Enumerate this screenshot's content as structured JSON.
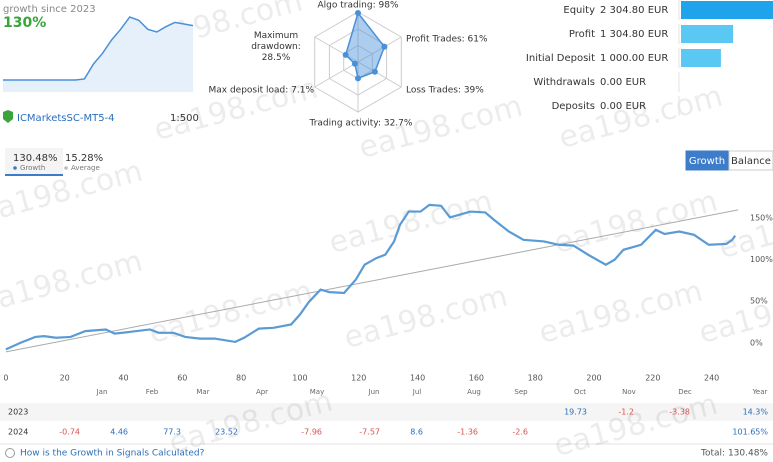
{
  "header": {
    "caption": "growth since 2023",
    "growth": "130%"
  },
  "sparkline": {
    "type": "area",
    "color": "#4a90d9",
    "values": [
      0,
      0,
      0,
      0,
      0,
      0,
      0,
      0,
      0,
      2,
      30,
      50,
      75,
      95,
      118,
      112,
      95,
      90,
      100,
      108,
      105,
      102
    ],
    "ylim": [
      -15,
      135
    ]
  },
  "radar": {
    "type": "radar",
    "color": "#4a90d9",
    "max": 100,
    "axes": [
      {
        "label": "Algo trading: 98%",
        "value": 98
      },
      {
        "label": "Profit Trades: 61%",
        "value": 61
      },
      {
        "label": "Loss Trades: 39%",
        "value": 39
      },
      {
        "label": "Trading activity: 32.7%",
        "value": 32.7
      },
      {
        "label": "Max deposit load: 7.1%",
        "value": 7.1
      },
      {
        "label": "Maximum drawdown: 28.5%",
        "value": 28.5
      }
    ]
  },
  "account": {
    "server": "ICMarketsSC-MT5-4",
    "leverage": "1:500"
  },
  "stats": {
    "type": "bar",
    "xlim": [
      0,
      2304.8
    ],
    "items": [
      {
        "label": "Equity",
        "value": 2304.8,
        "value_label": "2 304.80 EUR",
        "color": "#1fa3ea"
      },
      {
        "label": "Profit",
        "value": 1304.8,
        "value_label": "1 304.80 EUR",
        "color": "#5bc8f3"
      },
      {
        "label": "Initial Deposit",
        "value": 1000,
        "value_label": "1 000.00 EUR",
        "color": "#5bc8f3"
      },
      {
        "label": "Withdrawals",
        "value": 0,
        "value_label": "0.00 EUR",
        "color": "#5bc8f3"
      },
      {
        "label": "Deposits",
        "value": 0,
        "value_label": "0.00 EUR",
        "color": "#5bc8f3"
      }
    ]
  },
  "summary": [
    {
      "value": "130.48%",
      "label": "Growth"
    },
    {
      "value": "15.28%",
      "label": "Average"
    }
  ],
  "tabs": [
    "Growth",
    "Balance"
  ],
  "chart_data": {
    "type": "line",
    "xlim": [
      -2,
      251
    ],
    "ylim": [
      -28,
      190
    ],
    "xticks": [
      0,
      20,
      40,
      60,
      80,
      100,
      120,
      140,
      160,
      180,
      200,
      220,
      240
    ],
    "yticks": [
      {
        "value": 0,
        "label": "0%"
      },
      {
        "value": 50,
        "label": "50%"
      },
      {
        "value": 100,
        "label": "100%"
      },
      {
        "value": 150,
        "label": "150%"
      }
    ],
    "grid": false,
    "series": [
      {
        "color": "#5a9bd5",
        "x": [
          0,
          5,
          10,
          13,
          17,
          22,
          27,
          34,
          37,
          42,
          49,
          52,
          57,
          61,
          66,
          71,
          78,
          81,
          86,
          91,
          97,
          100,
          103,
          107,
          110,
          115,
          119,
          122,
          126,
          129,
          132,
          134,
          137,
          141,
          144,
          148,
          151,
          154,
          158,
          163,
          166,
          171,
          176,
          183,
          188,
          193,
          198,
          204,
          207,
          210,
          216,
          221,
          224,
          229,
          234,
          239,
          245,
          247,
          248
        ],
        "values": [
          -8,
          0,
          7,
          8,
          6,
          7,
          14,
          16,
          11,
          13,
          16,
          12,
          12,
          7,
          5,
          5,
          1,
          6,
          17,
          18,
          22,
          34,
          49,
          64,
          61,
          60,
          76,
          94,
          102,
          106,
          122,
          142,
          158,
          158,
          166,
          165,
          151,
          154,
          158,
          157,
          148,
          134,
          124,
          122,
          118,
          117,
          106,
          94,
          100,
          112,
          118,
          136,
          131,
          134,
          130,
          118,
          119,
          124,
          129
        ]
      },
      {
        "color": "#aaaaaa",
        "x": [
          0,
          249
        ],
        "values": [
          -11,
          160
        ]
      }
    ]
  },
  "table": {
    "columns": [
      "Jan",
      "Feb",
      "Mar",
      "Apr",
      "May",
      "Jun",
      "Jul",
      "Aug",
      "Sep",
      "Oct",
      "Nov",
      "Dec",
      "Year"
    ],
    "rows": [
      {
        "year": "2023",
        "values": [
          null,
          null,
          null,
          null,
          null,
          null,
          null,
          null,
          null,
          19.73,
          -1.2,
          -3.38
        ],
        "total": "14.3%"
      },
      {
        "year": "2024",
        "values": [
          -0.74,
          4.46,
          77.3,
          23.52,
          -7.96,
          -7.57,
          8.6,
          -1.36,
          -2.6,
          null,
          null,
          null
        ],
        "total": "101.65%"
      }
    ]
  },
  "footer": {
    "link": "How is the Growth in Signals Calculated?",
    "total": "Total: 130.48%"
  },
  "watermark": "ea198.com"
}
